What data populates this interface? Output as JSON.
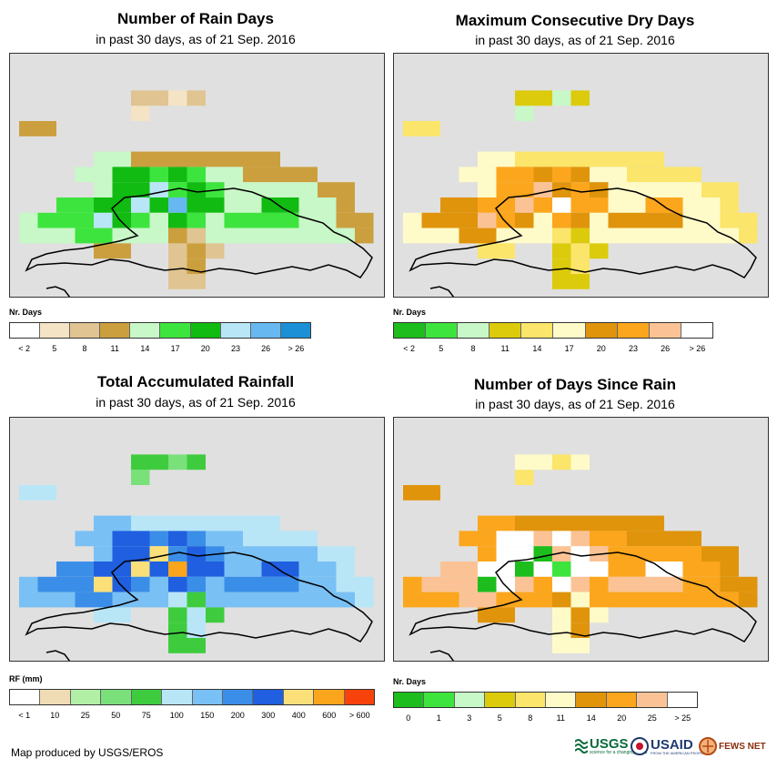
{
  "panels": [
    {
      "id": "rain-days",
      "title": "Number of Rain Days",
      "subtitle": "in past 30 days, as of 21 Sep. 2016",
      "legend_title": "Nr. Days",
      "legend_colors": [
        "#ffffff",
        "#f4e3c4",
        "#e0c491",
        "#cc9f3e",
        "#c8f7c8",
        "#3ee43e",
        "#11bb11",
        "#b8e6f7",
        "#67b8f0",
        "#1b90d6"
      ],
      "legend_ticks": [
        "< 2",
        "5",
        "8",
        "11",
        "14",
        "17",
        "20",
        "23",
        "26",
        "> 26"
      ]
    },
    {
      "id": "dry-days",
      "title": "Maximum Consecutive Dry Days",
      "subtitle": "in past 30 days, as of 21 Sep. 2016",
      "legend_title": "Nr. Days",
      "legend_colors": [
        "#1cbd1c",
        "#3ee43e",
        "#c8f7c8",
        "#dccb0c",
        "#fbe56a",
        "#fffbc8",
        "#e0940c",
        "#fba61c",
        "#fbc395",
        "#ffffff"
      ],
      "legend_ticks": [
        "< 2",
        "5",
        "8",
        "11",
        "14",
        "17",
        "20",
        "23",
        "26",
        "> 26"
      ]
    },
    {
      "id": "rainfall",
      "title": "Total Accumulated Rainfall",
      "subtitle": "in past 30 days, as of 21 Sep. 2016",
      "legend_title": "RF (mm)",
      "legend_colors": [
        "#ffffff",
        "#f0dcb4",
        "#b2f0a6",
        "#7ae07a",
        "#3ecc3e",
        "#b8e6f7",
        "#79c0f5",
        "#3b8ee8",
        "#1f5fe0",
        "#fbe07a",
        "#fba51c",
        "#f8420c"
      ],
      "legend_ticks": [
        "< 1",
        "10",
        "25",
        "50",
        "75",
        "100",
        "150",
        "200",
        "300",
        "400",
        "600",
        "> 600"
      ]
    },
    {
      "id": "days-since-rain",
      "title": "Number of Days Since Rain",
      "subtitle": "in past 30 days, as of 21 Sep. 2016",
      "legend_title": "Nr. Days",
      "legend_colors": [
        "#1cbd1c",
        "#3ee43e",
        "#c8f7c8",
        "#dccb0c",
        "#fbe56a",
        "#fffbc8",
        "#e0940c",
        "#fba61c",
        "#fbc395",
        "#ffffff"
      ],
      "legend_ticks": [
        "0",
        "1",
        "3",
        "5",
        "8",
        "11",
        "14",
        "20",
        "25",
        "> 25"
      ]
    }
  ],
  "footer": "Map produced by USGS/EROS",
  "logos": {
    "usgs": "USGS",
    "usgs_tagline": "science for a changing world",
    "usaid": "USAID",
    "usaid_tagline": "FROM THE AMERICAN PEOPLE",
    "fewsnet": "FEWS NET"
  }
}
